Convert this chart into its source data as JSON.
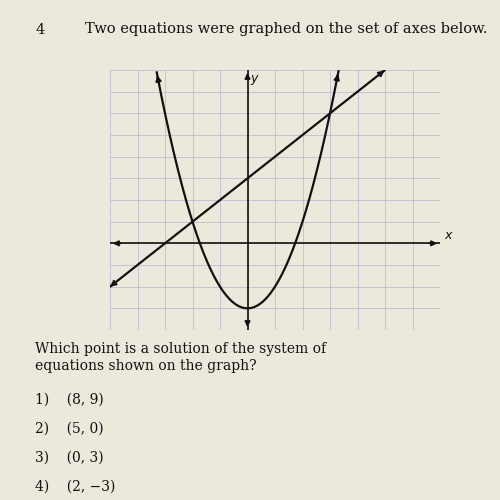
{
  "title_number": "4",
  "title_text": "Two equations were graphed on the set of axes below.",
  "question_text": "Which point is a solution of the system of\nequations shown on the graph?",
  "choices": [
    "1)    (8, 9)",
    "2)    (5, 0)",
    "3)    (0, 3)",
    "4)    (2, −3)"
  ],
  "background_color": "#ede8dc",
  "grid_color": "#b0b8cc",
  "axis_color": "#111111",
  "curve_color": "#111111",
  "line_color": "#111111",
  "xlim": [
    -5,
    7
  ],
  "ylim": [
    -4,
    8
  ],
  "x_grid_major": 1,
  "y_grid_major": 1,
  "parabola_a": 1,
  "parabola_b": 0,
  "parabola_c": -3,
  "line_slope": 1,
  "line_intercept": 3,
  "font_color": "#111111",
  "title_fontsize": 10.5,
  "question_fontsize": 10,
  "choice_fontsize": 10
}
